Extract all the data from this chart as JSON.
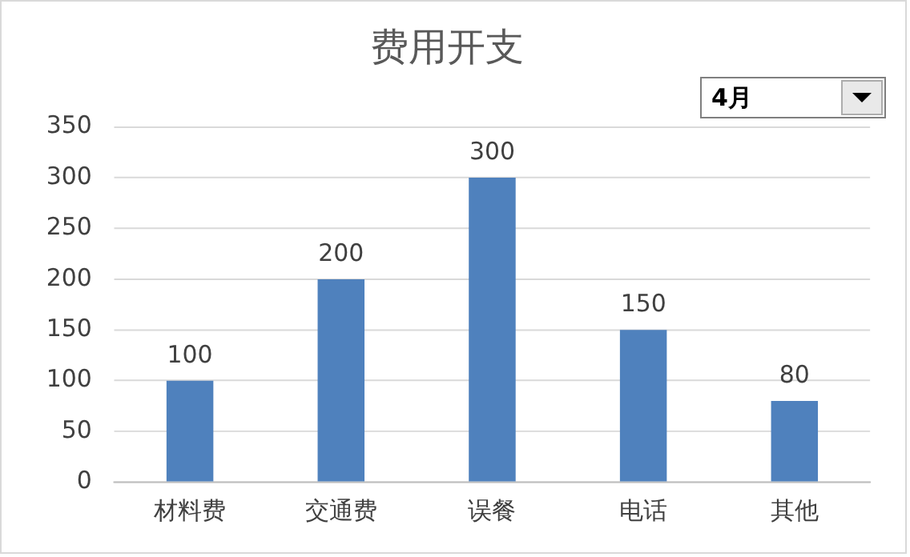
{
  "chart_data": {
    "type": "bar",
    "title": "费用开支",
    "categories": [
      "材料费",
      "交通费",
      "误餐",
      "电话",
      "其他"
    ],
    "values": [
      100,
      200,
      300,
      150,
      80
    ],
    "color": "#4f81bd",
    "ylim": [
      0,
      350
    ],
    "yticks": [
      0,
      50,
      100,
      150,
      200,
      250,
      300,
      350
    ],
    "grid": "y",
    "data_labels": true,
    "annotations": [
      "4月"
    ]
  }
}
